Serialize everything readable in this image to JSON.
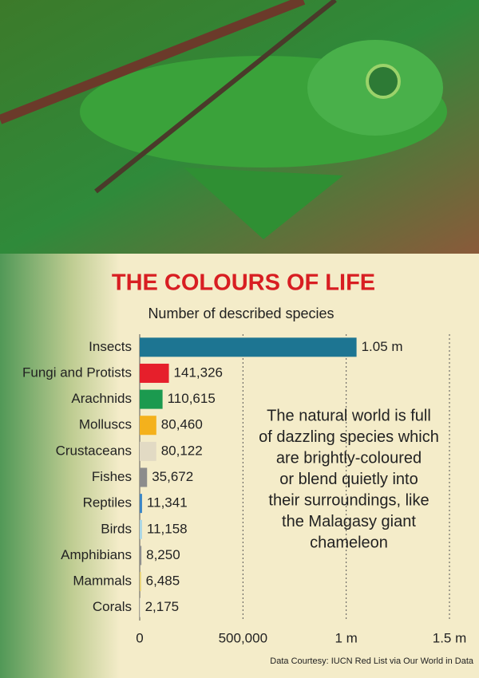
{
  "chart_data": {
    "type": "bar",
    "orientation": "horizontal",
    "title": "THE COLOURS OF LIFE",
    "subtitle": "Number of described species",
    "categories": [
      "Insects",
      "Fungi and Protists",
      "Arachnids",
      "Molluscs",
      "Crustaceans",
      "Fishes",
      "Reptiles",
      "Birds",
      "Amphibians",
      "Mammals",
      "Corals"
    ],
    "values": [
      1050000,
      141326,
      110615,
      80460,
      80122,
      35672,
      11341,
      11158,
      8250,
      6485,
      2175
    ],
    "value_labels": [
      "1.05 m",
      "141,326",
      "110,615",
      "80,460",
      "80,122",
      "35,672",
      "11,341",
      "11,158",
      "8,250",
      "6,485",
      "2,175"
    ],
    "colors": [
      "#1d7592",
      "#e61f2b",
      "#1b9a4f",
      "#f4b11c",
      "#e2dac4",
      "#8c8c8c",
      "#3a86c6",
      "#a9d6e6",
      "#8f8f8f",
      "#e6cf6c",
      "#c9c9c9"
    ],
    "xlim": [
      0,
      1500000
    ],
    "xticks": [
      0,
      {
        "value": 500000,
        "label": "500,000"
      },
      {
        "value": 1000000,
        "label": "1 m"
      },
      {
        "value": 1500000,
        "label": "1.5 m"
      }
    ],
    "grid": true,
    "annotation": [
      "The natural world is full",
      "of dazzling species which",
      "are brightly-coloured",
      "or blend quietly into",
      "their surroundings, like",
      "the Malagasy giant",
      "chameleon"
    ],
    "source": "Data Courtesy: IUCN Red List via Our World in Data"
  }
}
